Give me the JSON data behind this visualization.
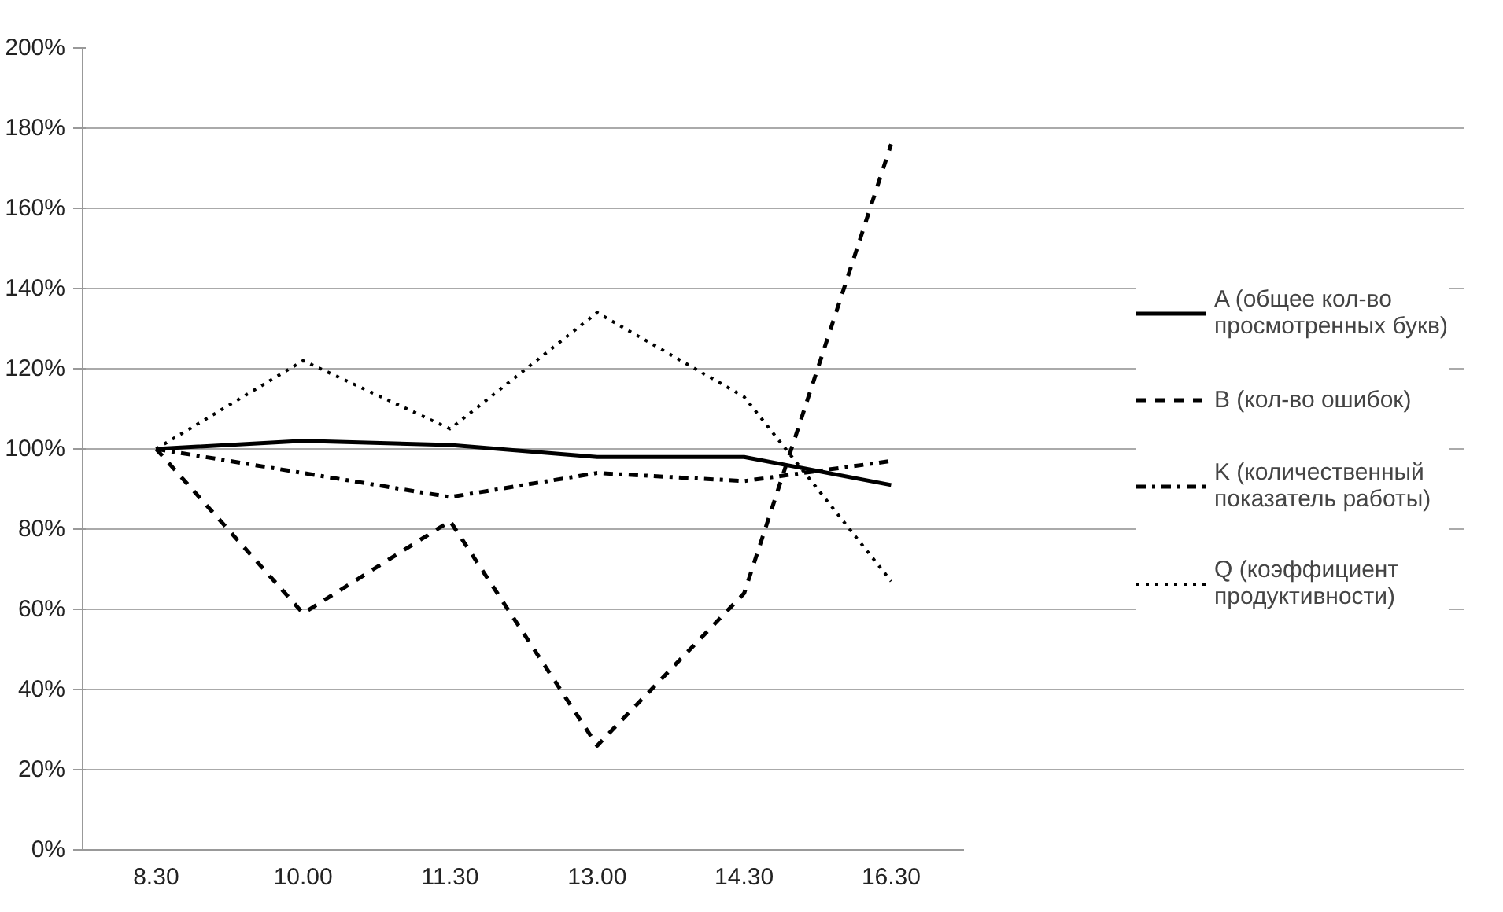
{
  "chart_data": {
    "type": "line",
    "categories": [
      "8.30",
      "10.00",
      "11.30",
      "13.00",
      "14.30",
      "16.30"
    ],
    "series": [
      {
        "name": "A (общее кол-во просмотренных букв)",
        "color": "#000000",
        "line_style": "solid",
        "values": [
          100,
          102,
          101,
          98,
          98,
          91
        ]
      },
      {
        "name": "B (кол-во ошибок)",
        "color": "#000000",
        "line_style": "dashed",
        "values": [
          100,
          59,
          82,
          26,
          64,
          176
        ]
      },
      {
        "name": "K (количественный показатель работы)",
        "color": "#000000",
        "line_style": "dashdot",
        "values": [
          100,
          94,
          88,
          94,
          92,
          97
        ]
      },
      {
        "name": "Q (коэффициент продуктивности)",
        "color": "#000000",
        "line_style": "dotted",
        "values": [
          100,
          122,
          105,
          134,
          113,
          67
        ]
      }
    ],
    "ylim": [
      0,
      200
    ],
    "yticks": [
      {
        "value": 0,
        "label": "0%"
      },
      {
        "value": 20,
        "label": "20%"
      },
      {
        "value": 40,
        "label": "40%"
      },
      {
        "value": 60,
        "label": "60%"
      },
      {
        "value": 80,
        "label": "80%"
      },
      {
        "value": 100,
        "label": "100%"
      },
      {
        "value": 120,
        "label": "120%"
      },
      {
        "value": 140,
        "label": "140%"
      },
      {
        "value": 160,
        "label": "160%"
      },
      {
        "value": 180,
        "label": "180%"
      },
      {
        "value": 200,
        "label": "200%"
      }
    ],
    "grid": "y",
    "legend": "right",
    "marker": "none"
  }
}
